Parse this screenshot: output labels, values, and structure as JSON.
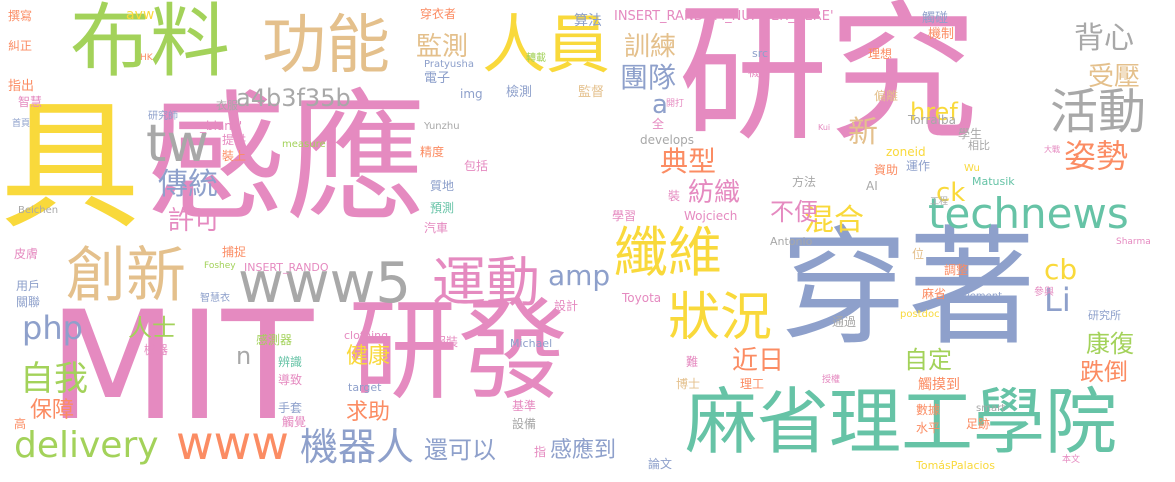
{
  "palette": {
    "pink": "#e58ac0",
    "green": "#a3d25a",
    "blue": "#8ea0cb",
    "tan": "#e4c08c",
    "yellow": "#f9d93b",
    "teal": "#66c3a6",
    "gray": "#a8a8a8",
    "orange": "#fb8c63",
    "background": "#ffffff"
  },
  "words": [
    {
      "id": "word-mit",
      "text": "MIT",
      "color": "pink"
    },
    {
      "id": "word-yan-fa",
      "text": "研發",
      "color": "pink"
    },
    {
      "id": "word-gan-ying",
      "text": "感應",
      "color": "pink"
    },
    {
      "id": "word-yan-jiu",
      "text": "研究",
      "color": "pink"
    },
    {
      "id": "word-chuan-zhuo",
      "text": "穿著",
      "color": "blue"
    },
    {
      "id": "word-ju",
      "text": "具",
      "color": "yellow"
    },
    {
      "id": "word-bu-liao",
      "text": "布料",
      "color": "green"
    },
    {
      "id": "word-gong-neng",
      "text": "功能",
      "color": "tan"
    },
    {
      "id": "word-ren-yuan",
      "text": "人員",
      "color": "yellow"
    },
    {
      "id": "word-ma-sheng",
      "text": "麻省理工學院",
      "color": "teal"
    },
    {
      "id": "word-chuang-xin",
      "text": "創新",
      "color": "tan"
    },
    {
      "id": "word-www5",
      "text": "www5",
      "color": "gray"
    },
    {
      "id": "word-technews",
      "text": "technews",
      "color": "teal"
    },
    {
      "id": "word-yun-dong",
      "text": "運動",
      "color": "pink"
    },
    {
      "id": "word-xian-wei",
      "text": "纖維",
      "color": "yellow"
    },
    {
      "id": "word-zhuang-kuang",
      "text": "狀況",
      "color": "yellow"
    },
    {
      "id": "word-huo-dong",
      "text": "活動",
      "color": "gray"
    },
    {
      "id": "word-tw",
      "text": "tw",
      "color": "gray"
    },
    {
      "id": "word-www",
      "text": "www",
      "color": "orange"
    },
    {
      "id": "word-delivery",
      "text": "delivery",
      "color": "green"
    },
    {
      "id": "word-ji-qi-ren",
      "text": "機器人",
      "color": "blue"
    },
    {
      "id": "word-jian-ce",
      "text": "監測",
      "color": "tan"
    },
    {
      "id": "word-xun-lian",
      "text": "訓練",
      "color": "tan"
    },
    {
      "id": "word-tuan-dui",
      "text": "團隊",
      "color": "blue"
    },
    {
      "id": "word-bei-xin",
      "text": "背心",
      "color": "gray"
    },
    {
      "id": "word-shou-ya",
      "text": "受壓",
      "color": "tan"
    },
    {
      "id": "word-zi-shi",
      "text": "姿勢",
      "color": "orange"
    },
    {
      "id": "word-a4b3f35b",
      "text": "a4b3f35b",
      "color": "gray"
    },
    {
      "id": "word-chuan-tong",
      "text": "傳統",
      "color": "blue"
    },
    {
      "id": "word-dian-xing",
      "text": "典型",
      "color": "orange"
    },
    {
      "id": "word-fang-zhi",
      "text": "紡織",
      "color": "pink"
    },
    {
      "id": "word-hun-he",
      "text": "混合",
      "color": "yellow"
    },
    {
      "id": "word-xu-ke",
      "text": "許可",
      "color": "pink"
    },
    {
      "id": "word-bu-bian",
      "text": "不便",
      "color": "pink"
    },
    {
      "id": "word-php",
      "text": "php",
      "color": "blue"
    },
    {
      "id": "word-amp",
      "text": "amp",
      "color": "blue"
    },
    {
      "id": "word-zi-wo",
      "text": "自我",
      "color": "green"
    },
    {
      "id": "word-li",
      "text": "Li",
      "color": "blue"
    },
    {
      "id": "word-cb",
      "text": "cb",
      "color": "yellow"
    },
    {
      "id": "word-ck",
      "text": "ck",
      "color": "yellow"
    },
    {
      "id": "word-href",
      "text": "href",
      "color": "yellow"
    },
    {
      "id": "word-xin",
      "text": "新",
      "color": "tan"
    },
    {
      "id": "word-a",
      "text": "a",
      "color": "blue"
    },
    {
      "id": "word-ren-shi",
      "text": "人士",
      "color": "green"
    },
    {
      "id": "word-jian-kang",
      "text": "健康",
      "color": "yellow"
    },
    {
      "id": "word-jin-ri",
      "text": "近日",
      "color": "orange"
    },
    {
      "id": "word-kang-fu",
      "text": "康復",
      "color": "green"
    },
    {
      "id": "word-zi-ding",
      "text": "自定",
      "color": "green"
    },
    {
      "id": "word-die-dao",
      "text": "跌倒",
      "color": "orange"
    },
    {
      "id": "word-bao-zhang",
      "text": "保障",
      "color": "orange"
    },
    {
      "id": "word-qiu-zhu",
      "text": "求助",
      "color": "orange"
    },
    {
      "id": "word-hai-ke-yi",
      "text": "還可以",
      "color": "blue"
    },
    {
      "id": "word-gan-ying-dao",
      "text": "感應到",
      "color": "blue"
    },
    {
      "id": "word-n",
      "text": "n",
      "color": "gray"
    },
    {
      "id": "word-zhuan-xie",
      "text": "撰寫",
      "color": "orange"
    },
    {
      "id": "word-jiu-zheng",
      "text": "糾正",
      "color": "orange"
    },
    {
      "id": "word-avw",
      "text": "avw",
      "color": "yellow"
    },
    {
      "id": "word-chuan-yi-zhe",
      "text": "穿衣者",
      "color": "orange"
    },
    {
      "id": "word-suan-fa",
      "text": "算法",
      "color": "blue"
    },
    {
      "id": "word-insert-random-number-here",
      "text": "INSERT_RANDOM_NUMBER_HERE'",
      "color": "pink"
    },
    {
      "id": "word-chu-peng",
      "text": "觸碰",
      "color": "blue"
    },
    {
      "id": "word-ji-zhi",
      "text": "機制",
      "color": "orange"
    },
    {
      "id": "word-hk",
      "text": "HK",
      "color": "orange"
    },
    {
      "id": "word-zhuan-zai",
      "text": "轉載",
      "color": "green"
    },
    {
      "id": "word-dian-zi",
      "text": "電子",
      "color": "blue"
    },
    {
      "id": "word-wa-zi",
      "text": "襪子",
      "color": "pink"
    },
    {
      "id": "word-li-xiang",
      "text": "理想",
      "color": "orange"
    },
    {
      "id": "word-zhi-chu",
      "text": "指出",
      "color": "orange"
    },
    {
      "id": "word-zhi-hui",
      "text": "智慧",
      "color": "pink"
    },
    {
      "id": "word-yi-fu",
      "text": "衣服",
      "color": "gray"
    },
    {
      "id": "word-pratyusha",
      "text": "Pratyusha",
      "color": "blue"
    },
    {
      "id": "word-src",
      "text": "src",
      "color": "blue"
    },
    {
      "id": "word-unwire",
      "text": "Unwire",
      "color": "pink"
    },
    {
      "id": "word-img",
      "text": "img",
      "color": "blue"
    },
    {
      "id": "word-jian-ce-2",
      "text": "檢測",
      "color": "blue"
    },
    {
      "id": "word-jian-du",
      "text": "監督",
      "color": "tan"
    },
    {
      "id": "word-pian-li",
      "text": "偏離",
      "color": "tan"
    },
    {
      "id": "word-shou-ye",
      "text": "首頁",
      "color": "blue"
    },
    {
      "id": "word-yan-jiu-shi",
      "text": "研究師",
      "color": "blue"
    },
    {
      "id": "word-blank",
      "text": "_blank'",
      "color": "pink"
    },
    {
      "id": "word-kai-fa",
      "text": "開打",
      "color": "pink"
    },
    {
      "id": "word-torralba",
      "text": "Torralba",
      "color": "gray"
    },
    {
      "id": "word-ti-gong",
      "text": "提供",
      "color": "pink"
    },
    {
      "id": "word-measure",
      "text": "measure",
      "color": "green"
    },
    {
      "id": "word-quan",
      "text": "全",
      "color": "pink"
    },
    {
      "id": "word-kui",
      "text": "Kui",
      "color": "pink"
    },
    {
      "id": "word-xue-sheng",
      "text": "學生",
      "color": "gray"
    },
    {
      "id": "word-zhuang-shang",
      "text": "裝上",
      "color": "orange"
    },
    {
      "id": "word-yunzhu",
      "text": "Yunzhu",
      "color": "gray"
    },
    {
      "id": "word-develops",
      "text": "develops",
      "color": "gray"
    },
    {
      "id": "word-zoneid",
      "text": "zoneid",
      "color": "yellow"
    },
    {
      "id": "word-xiang-bi",
      "text": "相比",
      "color": "gray"
    },
    {
      "id": "word-da-zhan",
      "text": "大戰",
      "color": "pink"
    },
    {
      "id": "word-jing-du",
      "text": "精度",
      "color": "orange"
    },
    {
      "id": "word-bao-kuo",
      "text": "包括",
      "color": "pink"
    },
    {
      "id": "word-zi-zhu",
      "text": "資助",
      "color": "orange"
    },
    {
      "id": "word-yun-zuo",
      "text": "運作",
      "color": "blue"
    },
    {
      "id": "word-wu",
      "text": "Wu",
      "color": "yellow"
    },
    {
      "id": "word-zhi-di",
      "text": "質地",
      "color": "blue"
    },
    {
      "id": "word-fang-fa",
      "text": "方法",
      "color": "gray"
    },
    {
      "id": "word-ai",
      "text": "AI",
      "color": "gray"
    },
    {
      "id": "word-matusik",
      "text": "Matusik",
      "color": "teal"
    },
    {
      "id": "word-beichen",
      "text": "Beichen",
      "color": "gray"
    },
    {
      "id": "word-yu-ce",
      "text": "預測",
      "color": "teal"
    },
    {
      "id": "word-zhuang",
      "text": "裝",
      "color": "pink"
    },
    {
      "id": "word-gong-cheng",
      "text": "工程",
      "color": "gray"
    },
    {
      "id": "word-pi-fu",
      "text": "皮膚",
      "color": "pink"
    },
    {
      "id": "word-qi-che",
      "text": "汽車",
      "color": "pink"
    },
    {
      "id": "word-xue-xi",
      "text": "學習",
      "color": "pink"
    },
    {
      "id": "word-wojciech",
      "text": "Wojciech",
      "color": "pink"
    },
    {
      "id": "word-sharma",
      "text": "Sharma",
      "color": "pink"
    },
    {
      "id": "word-bu-zhuo",
      "text": "捕捉",
      "color": "orange"
    },
    {
      "id": "word-antonio",
      "text": "Antonio",
      "color": "gray"
    },
    {
      "id": "word-wei",
      "text": "位",
      "color": "tan"
    },
    {
      "id": "word-foshey",
      "text": "Foshey",
      "color": "green"
    },
    {
      "id": "word-insert-rando",
      "text": "INSERT_RANDO",
      "color": "pink"
    },
    {
      "id": "word-tiao-zheng",
      "text": "調整",
      "color": "orange"
    },
    {
      "id": "word-yong-hu",
      "text": "用戶",
      "color": "blue"
    },
    {
      "id": "word-toyota",
      "text": "Toyota",
      "color": "pink"
    },
    {
      "id": "word-guan-lian",
      "text": "關聯",
      "color": "blue"
    },
    {
      "id": "word-zhi-hui-yi",
      "text": "智慧衣",
      "color": "blue"
    },
    {
      "id": "word-ma-sheng-short",
      "text": "麻省",
      "color": "orange"
    },
    {
      "id": "word-movement",
      "text": "movement",
      "color": "blue"
    },
    {
      "id": "word-can-yu",
      "text": "參與",
      "color": "pink"
    },
    {
      "id": "word-she-ji",
      "text": "設計",
      "color": "pink"
    },
    {
      "id": "word-postdoc",
      "text": "postdoc",
      "color": "yellow"
    },
    {
      "id": "word-yan-jiu-suo",
      "text": "研究所",
      "color": "blue"
    },
    {
      "id": "word-gan-ce-qi",
      "text": "感測器",
      "color": "green"
    },
    {
      "id": "word-clothing",
      "text": "clothing",
      "color": "pink"
    },
    {
      "id": "word-tong-guo",
      "text": "通過",
      "color": "gray"
    },
    {
      "id": "word-ji-qi",
      "text": "機器",
      "color": "pink"
    },
    {
      "id": "word-bian-shi",
      "text": "辨識",
      "color": "teal"
    },
    {
      "id": "word-fu-zhuang",
      "text": "服裝",
      "color": "pink"
    },
    {
      "id": "word-michael",
      "text": "Michael",
      "color": "blue"
    },
    {
      "id": "word-nan",
      "text": "難",
      "color": "pink"
    },
    {
      "id": "word-bo-shi",
      "text": "博士",
      "color": "tan"
    },
    {
      "id": "word-dao-zhi",
      "text": "導致",
      "color": "pink"
    },
    {
      "id": "word-target",
      "text": "target",
      "color": "blue"
    },
    {
      "id": "word-li-gong",
      "text": "理工",
      "color": "orange"
    },
    {
      "id": "word-shou-quan",
      "text": "授權",
      "color": "pink"
    },
    {
      "id": "word-chu-mo-dao",
      "text": "觸摸到",
      "color": "orange"
    },
    {
      "id": "word-shu-ju",
      "text": "數據",
      "color": "orange"
    },
    {
      "id": "word-smart",
      "text": "smart",
      "color": "gray"
    },
    {
      "id": "word-shou-tao",
      "text": "手套",
      "color": "blue"
    },
    {
      "id": "word-ji-zhun",
      "text": "基準",
      "color": "pink"
    },
    {
      "id": "word-gao",
      "text": "高",
      "color": "orange"
    },
    {
      "id": "word-chu-jue",
      "text": "觸覺",
      "color": "pink"
    },
    {
      "id": "word-she-bei",
      "text": "設備",
      "color": "gray"
    },
    {
      "id": "word-shui-ping",
      "text": "水平",
      "color": "orange"
    },
    {
      "id": "word-zu-ji",
      "text": "足跡",
      "color": "orange"
    },
    {
      "id": "word-zhi",
      "text": "指",
      "color": "pink"
    },
    {
      "id": "word-lun-wen",
      "text": "論文",
      "color": "blue"
    },
    {
      "id": "word-tomas-palacios",
      "text": "TomásPalacios",
      "color": "yellow"
    },
    {
      "id": "word-ben-wen",
      "text": "本文",
      "color": "pink"
    }
  ]
}
